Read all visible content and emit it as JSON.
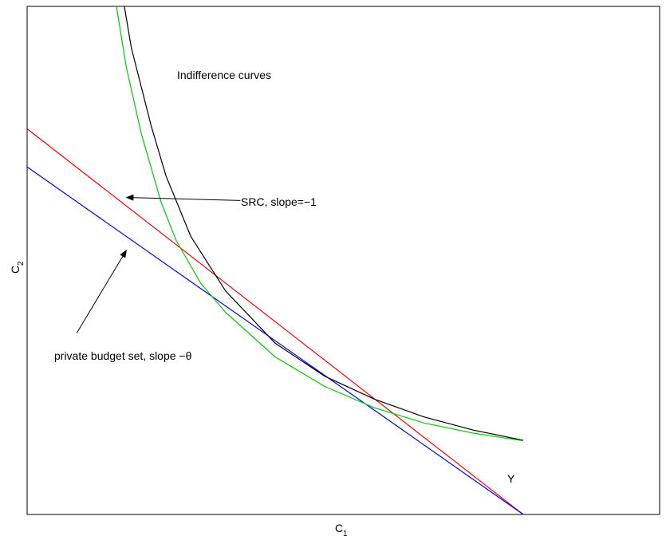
{
  "chart_data": {
    "type": "line",
    "title": "",
    "xlabel": "C",
    "xlabel_sub": "1",
    "ylabel": "C",
    "ylabel_sub": "2",
    "xlim": [
      0,
      1
    ],
    "ylim": [
      0,
      1
    ],
    "grid": false,
    "ticks": false,
    "annotations": {
      "indifference": "Indifference curves",
      "src": "SRC, slope=−1",
      "private": "private budget set, slope −θ",
      "y_label": "Y"
    },
    "series": [
      {
        "color": "#ff0000",
        "points": [
          [
            0,
            0.759
          ],
          [
            1.0,
            0
          ]
        ]
      },
      {
        "color": "#0000ff",
        "points": [
          [
            0,
            0.684
          ],
          [
            1.0,
            0
          ]
        ]
      },
      {
        "color": "#000000",
        "points": [
          [
            0.196,
            1.0
          ],
          [
            0.21,
            0.919
          ],
          [
            0.25,
            0.765
          ],
          [
            0.28,
            0.666
          ],
          [
            0.33,
            0.547
          ],
          [
            0.4,
            0.44
          ],
          [
            0.5,
            0.337
          ],
          [
            0.6,
            0.272
          ],
          [
            0.7,
            0.227
          ],
          [
            0.8,
            0.192
          ],
          [
            0.9,
            0.166
          ],
          [
            1.0,
            0.146
          ]
        ]
      },
      {
        "color": "#00cc00",
        "points": [
          [
            0.18,
            1.0
          ],
          [
            0.2,
            0.88
          ],
          [
            0.23,
            0.75
          ],
          [
            0.27,
            0.615
          ],
          [
            0.3,
            0.54
          ],
          [
            0.35,
            0.455
          ],
          [
            0.4,
            0.398
          ],
          [
            0.5,
            0.31
          ],
          [
            0.6,
            0.252
          ],
          [
            0.7,
            0.21
          ],
          [
            0.8,
            0.18
          ],
          [
            0.9,
            0.16
          ],
          [
            1.0,
            0.145
          ]
        ]
      }
    ],
    "arrows": [
      {
        "from": [
          0.43,
          0.618
        ],
        "to": [
          0.2,
          0.624
        ]
      },
      {
        "from": [
          0.1,
          0.357
        ],
        "to": [
          0.2,
          0.52
        ]
      }
    ]
  }
}
